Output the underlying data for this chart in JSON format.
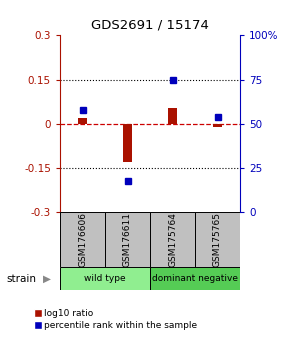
{
  "title": "GDS2691 / 15174",
  "samples": [
    "GSM176606",
    "GSM176611",
    "GSM175764",
    "GSM175765"
  ],
  "log10_ratio": [
    0.02,
    -0.13,
    0.055,
    -0.01
  ],
  "percentile_rank": [
    58,
    18,
    75,
    54
  ],
  "groups": [
    {
      "label": "wild type",
      "samples": [
        0,
        1
      ],
      "color": "#90EE90"
    },
    {
      "label": "dominant negative",
      "samples": [
        2,
        3
      ],
      "color": "#55CC55"
    }
  ],
  "ylim": [
    -0.3,
    0.3
  ],
  "y2lim": [
    0,
    100
  ],
  "yticks_left": [
    -0.3,
    -0.15,
    0,
    0.15,
    0.3
  ],
  "yticks_right": [
    0,
    25,
    50,
    75,
    100
  ],
  "hline_y": [
    0.15,
    -0.15
  ],
  "bar_color": "#AA1100",
  "point_color": "#0000BB",
  "zero_line_color": "#CC0000",
  "sample_box_color": "#C0C0C0",
  "strain_label": "strain"
}
